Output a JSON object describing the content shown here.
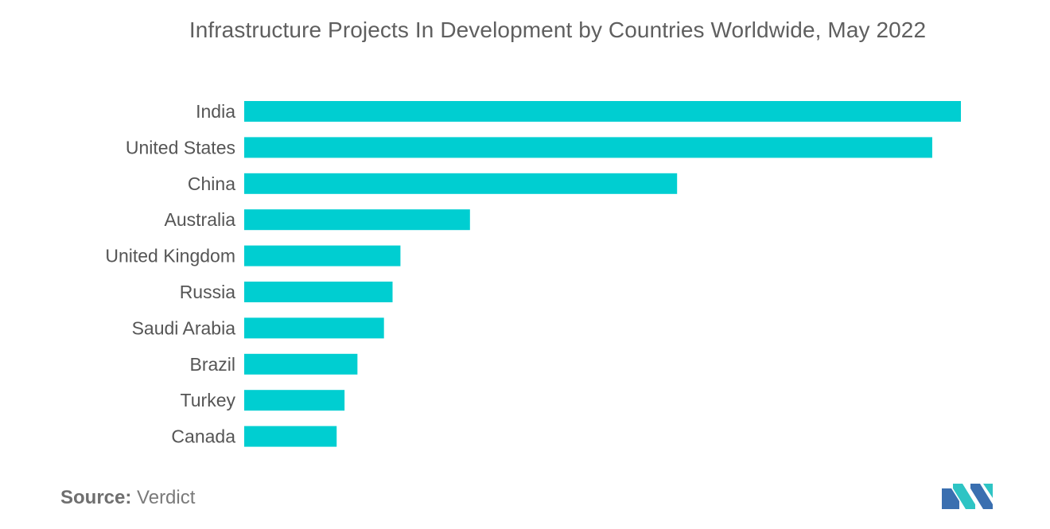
{
  "colors": {
    "bar": "#00CED1",
    "title": "#5f5f5f",
    "label": "#555555",
    "logo_blue": "#3a6fb0",
    "logo_teal": "#2ec4c4"
  },
  "source": {
    "label": "Source:",
    "value": "Verdict"
  },
  "logo": {
    "icon": "mordor-intelligence-logo"
  },
  "chart_data": {
    "type": "bar",
    "orientation": "horizontal",
    "title": "Infrastructure Projects In Development by Countries Worldwide, May 2022",
    "xlabel": "",
    "ylabel": "",
    "categories": [
      "India",
      "United States",
      "China",
      "Australia",
      "United Kingdom",
      "Russia",
      "Saudi Arabia",
      "Brazil",
      "Turkey",
      "Canada"
    ],
    "values": [
      100,
      96,
      60.4,
      31.5,
      21.8,
      20.7,
      19.5,
      15.8,
      14.0,
      12.9
    ],
    "xlim": [
      0,
      100
    ],
    "grid": false,
    "legend": "none",
    "value_axis_shown": false
  }
}
